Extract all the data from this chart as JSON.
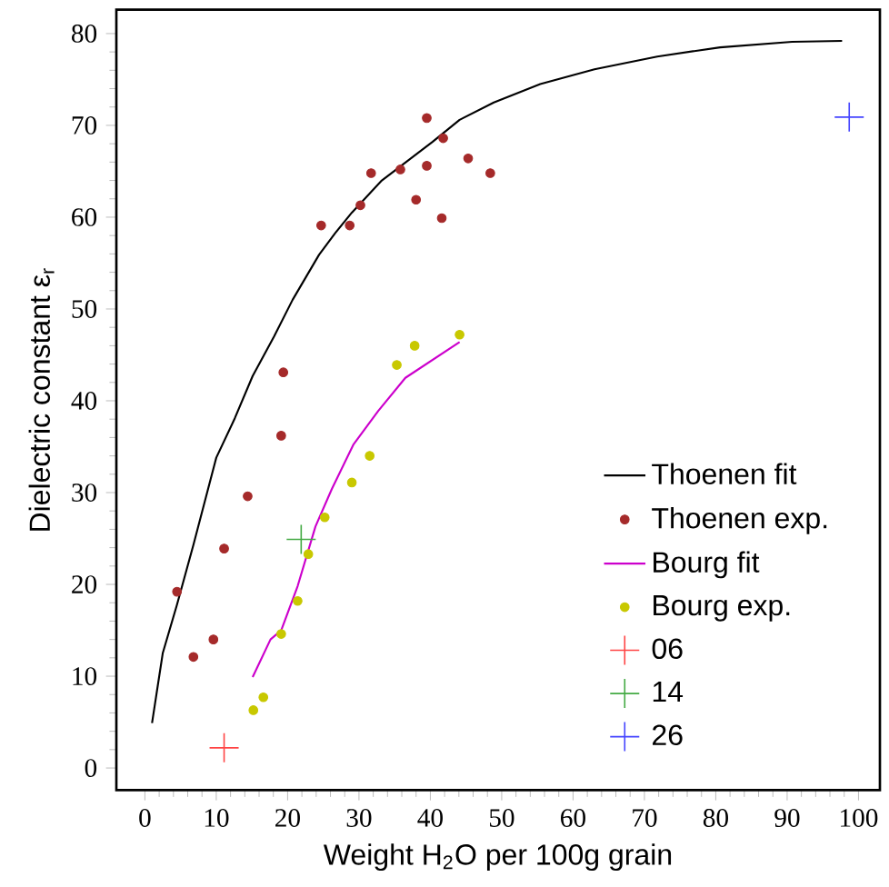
{
  "chart_data": {
    "type": "scatter",
    "xlabel": "Weight H$_{2}$O per 100g grain",
    "ylabel": "Dielectric constant ε$_{r}$",
    "xlim": [
      -4,
      103
    ],
    "ylim": [
      -2.4,
      82.6
    ],
    "xticks": [
      0,
      10,
      20,
      30,
      40,
      50,
      60,
      70,
      80,
      90,
      100
    ],
    "yticks": [
      0,
      10,
      20,
      30,
      40,
      50,
      60,
      70,
      80
    ],
    "grid": false,
    "legend": "bottom right",
    "series": [
      {
        "name": "Thoenen fit",
        "type": "line",
        "color": "#000000",
        "marker": "none",
        "x": [
          1,
          2.5,
          4.5,
          6.8,
          10,
          12.6,
          15.1,
          18.1,
          20.7,
          24.4,
          26.7,
          29,
          33.2,
          40.3,
          44.1,
          48.9,
          55.4,
          63,
          71.8,
          80.6,
          90.7,
          97.7
        ],
        "values": [
          4.9,
          12.5,
          17.8,
          24.3,
          33.8,
          38.1,
          42.7,
          47,
          51,
          55.9,
          58.3,
          60.5,
          64,
          68.2,
          70.6,
          72.5,
          74.5,
          76.1,
          77.5,
          78.5,
          79.1,
          79.2
        ]
      },
      {
        "name": "Thoenen exp.",
        "color": "#a52a2a",
        "marker": "circle",
        "x": [
          4.5,
          6.8,
          9.6,
          11.1,
          14.4,
          19.1,
          19.4,
          24.7,
          28.7,
          30.2,
          31.7,
          35.8,
          38,
          39.5,
          39.5,
          41.8,
          41.6,
          45.3,
          48.4
        ],
        "values": [
          19.2,
          12.1,
          14.0,
          23.9,
          29.6,
          36.2,
          43.1,
          59.1,
          59.1,
          61.3,
          64.8,
          65.2,
          61.9,
          65.6,
          70.8,
          68.6,
          59.9,
          66.4,
          64.8
        ]
      },
      {
        "name": "Bourg fit",
        "type": "line",
        "color": "#cc00cc",
        "marker": "none",
        "x": [
          15.1,
          17.6,
          19.1,
          21.4,
          23.9,
          26.2,
          29.2,
          32.7,
          36.5,
          44.1
        ],
        "values": [
          9.9,
          14.0,
          15.0,
          19.8,
          26.3,
          30.4,
          35.2,
          38.9,
          42.5,
          46.4
        ]
      },
      {
        "name": "Bourg exp.",
        "color": "#c8c800",
        "marker": "circle",
        "x": [
          15.2,
          16.6,
          19.1,
          21.4,
          22.9,
          25.2,
          29,
          31.5,
          35.3,
          37.8,
          44.1
        ],
        "values": [
          6.3,
          7.7,
          14.6,
          18.2,
          23.3,
          27.3,
          31.1,
          34.0,
          43.9,
          46.0,
          47.2
        ]
      },
      {
        "name": "06",
        "color": "#ff4444",
        "marker": "cross",
        "x": [
          11.1
        ],
        "values": [
          2.2
        ]
      },
      {
        "name": "14",
        "color": "#44aa44",
        "marker": "cross",
        "x": [
          21.9
        ],
        "values": [
          24.9
        ]
      },
      {
        "name": "26",
        "color": "#4444ff",
        "marker": "cross",
        "x": [
          98.7
        ],
        "values": [
          70.9
        ]
      }
    ]
  }
}
